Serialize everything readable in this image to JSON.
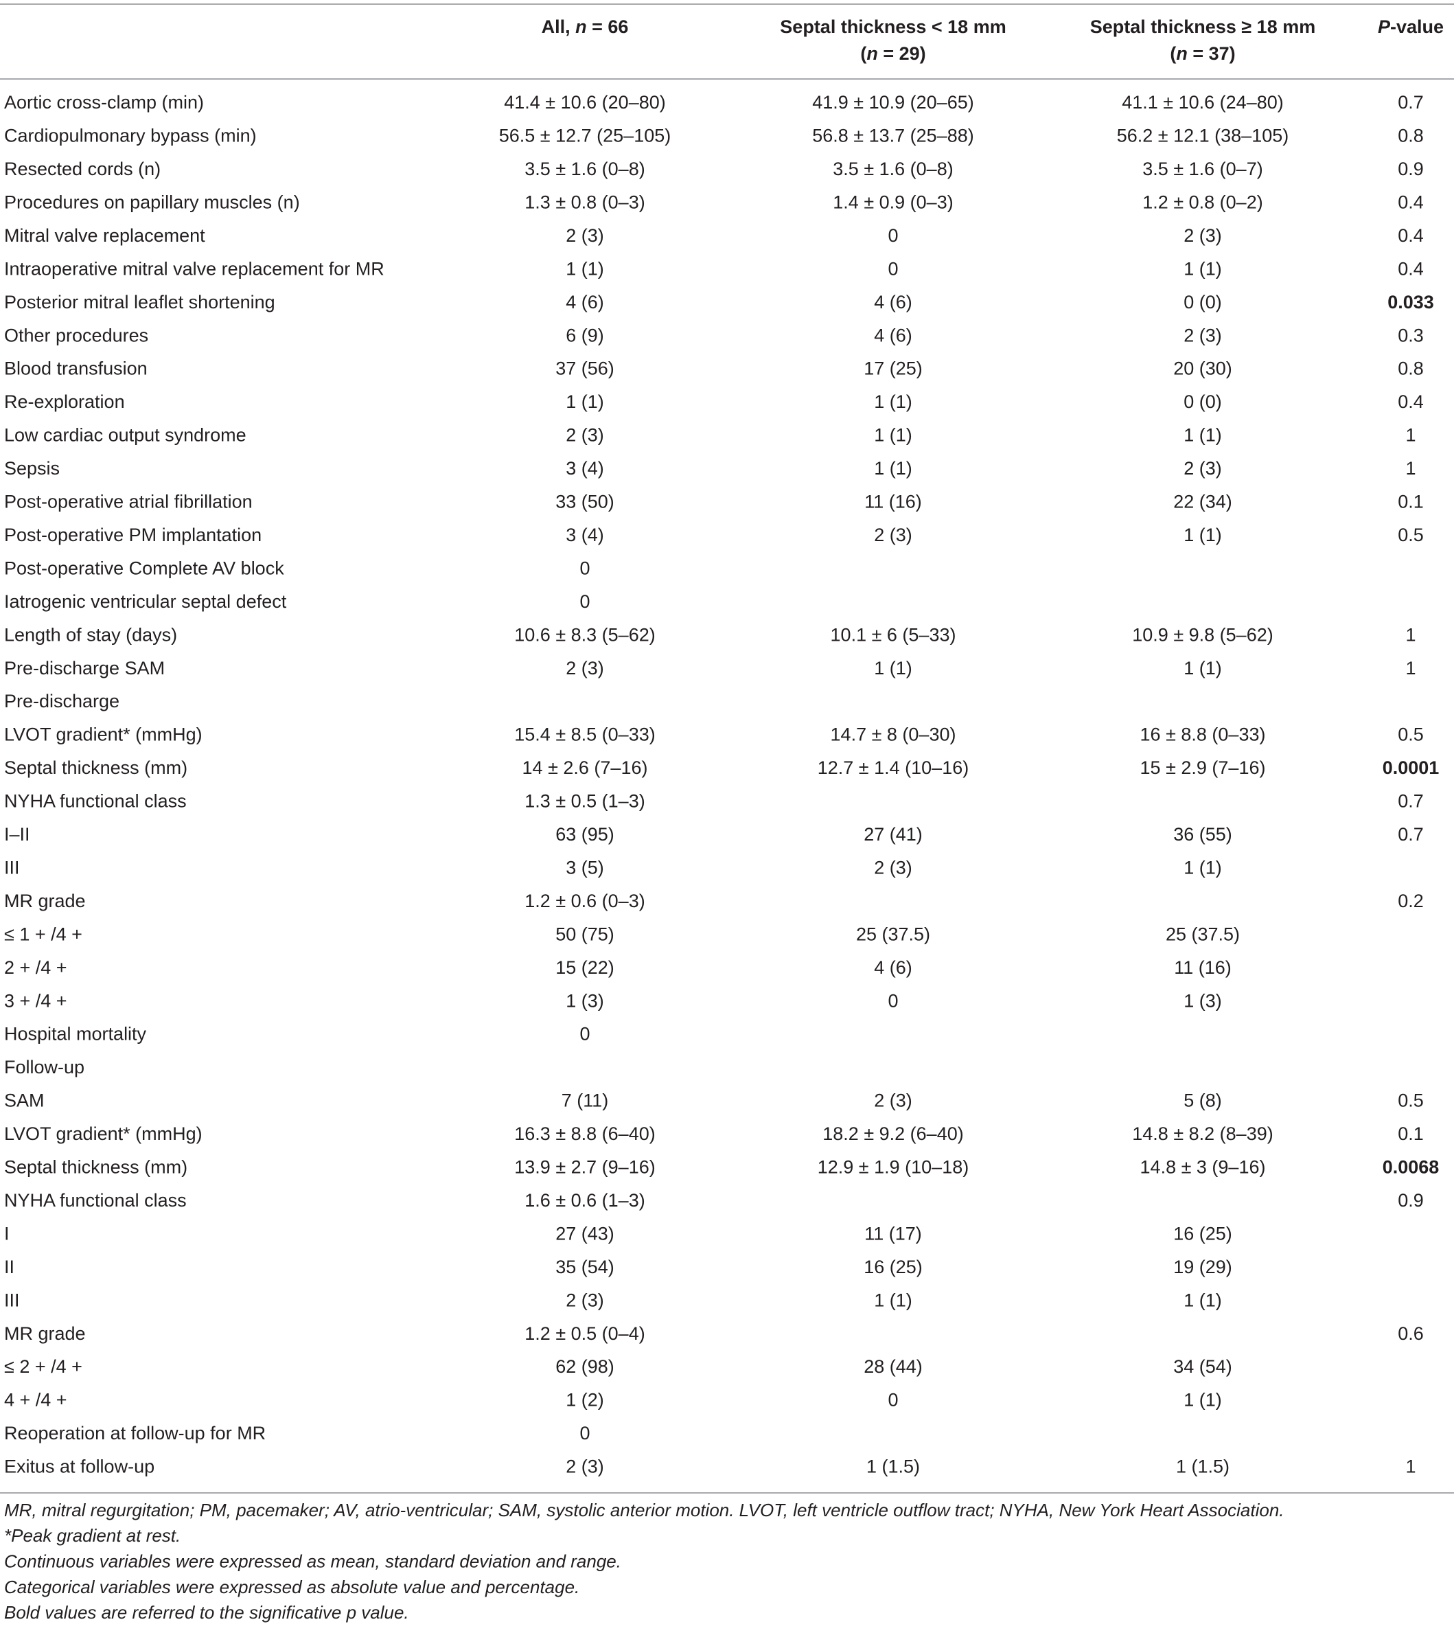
{
  "table": {
    "header": [
      [
        {
          "text": "All, "
        },
        {
          "text": "n",
          "italic": true
        },
        {
          "text": " = 66"
        }
      ],
      [
        {
          "text": "Septal thickness < 18 mm"
        },
        {
          "text": "(",
          "newline": true
        },
        {
          "text": "n",
          "italic": true
        },
        {
          "text": " = 29)"
        }
      ],
      [
        {
          "text": "Septal thickness ≥ 18 mm"
        },
        {
          "text": "(",
          "newline": true
        },
        {
          "text": "n",
          "italic": true
        },
        {
          "text": " = 37)"
        }
      ],
      [
        {
          "text": "P",
          "italic": true
        },
        {
          "text": "-value"
        }
      ]
    ],
    "rows": [
      [
        "Aortic cross-clamp (min)",
        "41.4 ± 10.6 (20–80)",
        "41.9 ± 10.9 (20–65)",
        "41.1 ± 10.6 (24–80)",
        "0.7"
      ],
      [
        "Cardiopulmonary bypass (min)",
        "56.5 ± 12.7 (25–105)",
        "56.8 ± 13.7 (25–88)",
        "56.2 ± 12.1 (38–105)",
        "0.8"
      ],
      [
        "Resected cords (n)",
        "3.5 ± 1.6 (0–8)",
        "3.5 ± 1.6 (0–8)",
        "3.5 ± 1.6 (0–7)",
        "0.9"
      ],
      [
        "Procedures on papillary muscles (n)",
        "1.3 ± 0.8 (0–3)",
        "1.4 ± 0.9 (0–3)",
        "1.2 ± 0.8 (0–2)",
        "0.4"
      ],
      [
        "Mitral valve replacement",
        "2 (3)",
        "0",
        "2 (3)",
        "0.4"
      ],
      [
        "Intraoperative mitral valve replacement for MR",
        "1 (1)",
        "0",
        "1 (1)",
        "0.4"
      ],
      [
        "Posterior mitral leaflet shortening",
        "4 (6)",
        "4 (6)",
        "0 (0)",
        "0.033"
      ],
      [
        "Other procedures",
        "6 (9)",
        "4 (6)",
        "2 (3)",
        "0.3"
      ],
      [
        "Blood transfusion",
        "37 (56)",
        "17 (25)",
        "20 (30)",
        "0.8"
      ],
      [
        "Re-exploration",
        "1 (1)",
        "1 (1)",
        "0 (0)",
        "0.4"
      ],
      [
        "Low cardiac output syndrome",
        "2 (3)",
        "1 (1)",
        "1 (1)",
        "1"
      ],
      [
        "Sepsis",
        "3 (4)",
        "1 (1)",
        "2 (3)",
        "1"
      ],
      [
        "Post-operative atrial fibrillation",
        "33 (50)",
        "11 (16)",
        "22 (34)",
        "0.1"
      ],
      [
        "Post-operative PM implantation",
        "3 (4)",
        "2 (3)",
        "1 (1)",
        "0.5"
      ],
      [
        "Post-operative Complete AV block",
        "0",
        null,
        null,
        null
      ],
      [
        "Iatrogenic ventricular septal defect",
        "0",
        null,
        null,
        null
      ],
      [
        "Length of stay (days)",
        "10.6 ± 8.3 (5–62)",
        "10.1 ± 6 (5–33)",
        "10.9 ± 9.8 (5–62)",
        "1"
      ],
      [
        "Pre-discharge SAM",
        "2 (3)",
        "1 (1)",
        "1 (1)",
        "1"
      ],
      [
        "Pre-discharge",
        null,
        null,
        null,
        null
      ],
      [
        "LVOT gradient* (mmHg)",
        "15.4 ± 8.5 (0–33)",
        "14.7 ± 8 (0–30)",
        "16 ± 8.8 (0–33)",
        "0.5"
      ],
      [
        "Septal thickness (mm)",
        "14 ± 2.6 (7–16)",
        "12.7 ± 1.4 (10–16)",
        "15 ± 2.9 (7–16)",
        "0.0001"
      ],
      [
        "NYHA functional class",
        "1.3 ± 0.5 (1–3)",
        null,
        null,
        "0.7"
      ],
      [
        "I–II",
        "63 (95)",
        "27 (41)",
        "36 (55)",
        "0.7"
      ],
      [
        "III",
        "3 (5)",
        "2 (3)",
        "1 (1)",
        null
      ],
      [
        "MR grade",
        "1.2 ± 0.6 (0–3)",
        null,
        null,
        "0.2"
      ],
      [
        "≤ 1 + /4 +",
        "50 (75)",
        "25 (37.5)",
        "25 (37.5)",
        null
      ],
      [
        "2 + /4 +",
        "15 (22)",
        "4 (6)",
        "11 (16)",
        null
      ],
      [
        "3 + /4 +",
        "1 (3)",
        "0",
        "1 (3)",
        null
      ],
      [
        "Hospital mortality",
        "0",
        null,
        null,
        null
      ],
      [
        "Follow-up",
        null,
        null,
        null,
        null
      ],
      [
        "SAM",
        "7 (11)",
        "2 (3)",
        "5 (8)",
        "0.5"
      ],
      [
        "LVOT gradient* (mmHg)",
        "16.3 ± 8.8 (6–40)",
        "18.2 ± 9.2 (6–40)",
        "14.8 ± 8.2 (8–39)",
        "0.1"
      ],
      [
        "Septal thickness (mm)",
        "13.9 ± 2.7 (9–16)",
        "12.9 ± 1.9 (10–18)",
        "14.8 ± 3 (9–16)",
        "0.0068"
      ],
      [
        "NYHA functional class",
        "1.6 ± 0.6 (1–3)",
        null,
        null,
        "0.9"
      ],
      [
        "I",
        "27 (43)",
        "11 (17)",
        "16 (25)",
        null
      ],
      [
        "II",
        "35 (54)",
        "16 (25)",
        "19 (29)",
        null
      ],
      [
        "III",
        "2 (3)",
        "1 (1)",
        "1 (1)",
        null
      ],
      [
        "MR grade",
        "1.2 ± 0.5 (0–4)",
        null,
        null,
        "0.6"
      ],
      [
        "≤ 2 + /4 +",
        "62 (98)",
        "28 (44)",
        "34 (54)",
        null
      ],
      [
        "4 + /4 +",
        "1 (2)",
        "0",
        "1 (1)",
        null
      ],
      [
        "Reoperation at follow-up for MR",
        "0",
        null,
        null,
        null
      ],
      [
        "Exitus at follow-up",
        "2 (3)",
        "1 (1.5)",
        "1 (1.5)",
        "1"
      ]
    ],
    "bold_rows": [
      6,
      20,
      32
    ],
    "footnotes": [
      "MR, mitral regurgitation; PM, pacemaker; AV, atrio-ventricular; SAM, systolic anterior motion. LVOT, left ventricle outflow tract; NYHA, New York Heart Association.",
      "*Peak gradient at rest.",
      "Continuous variables were expressed as mean, standard deviation and range.",
      "Categorical variables were expressed as absolute value and percentage.",
      "Bold values are referred to the significative p value."
    ]
  }
}
